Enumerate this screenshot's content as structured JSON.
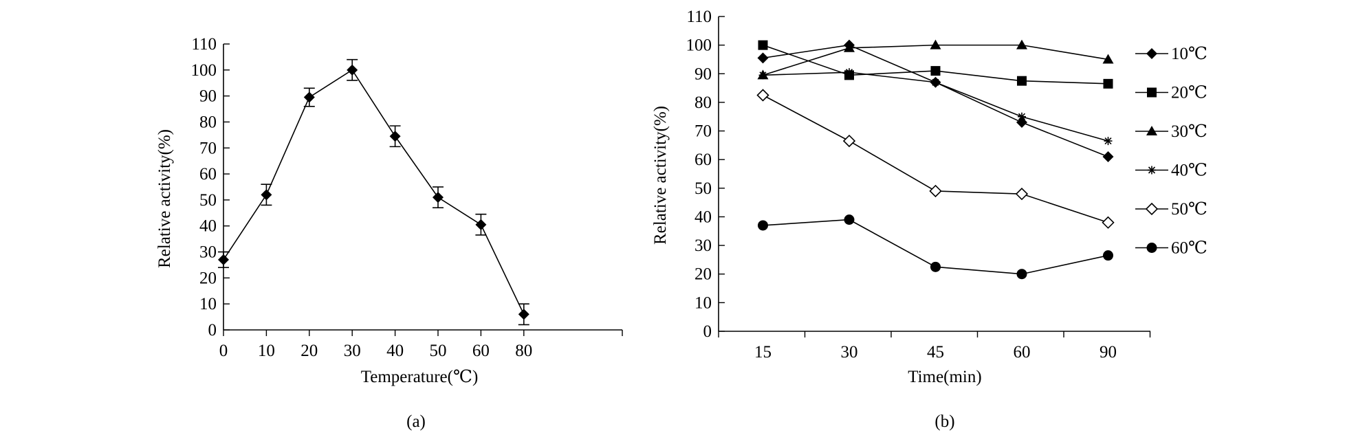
{
  "panels": [
    {
      "label": "(a)",
      "chart_data": {
        "type": "line",
        "xlabel": "Temperature(℃)",
        "ylabel": "Relative activity(%)",
        "categories": [
          "0",
          "10",
          "20",
          "30",
          "40",
          "50",
          "60",
          "80"
        ],
        "ylim": [
          0,
          110
        ],
        "yticks": [
          0,
          10,
          20,
          30,
          40,
          50,
          60,
          70,
          80,
          90,
          100,
          110
        ],
        "grid": false,
        "series": [
          {
            "values": [
              27,
              52,
              89.5,
              100,
              74.5,
              51,
              40.5,
              6
            ],
            "errors": [
              3,
              4,
              3.5,
              4,
              4,
              4,
              4,
              4
            ],
            "marker": "diamond"
          }
        ]
      }
    },
    {
      "label": "(b)",
      "chart_data": {
        "type": "line",
        "xlabel": "Time(min)",
        "ylabel": "Relative activity(%)",
        "categories": [
          "15",
          "30",
          "45",
          "60",
          "90"
        ],
        "ylim": [
          0,
          110
        ],
        "yticks": [
          0,
          10,
          20,
          30,
          40,
          50,
          60,
          70,
          80,
          90,
          100,
          110
        ],
        "grid": false,
        "legend": "right",
        "series": [
          {
            "name": "10℃",
            "marker": "diamond",
            "values": [
              95.5,
              100,
              87,
              73,
              61
            ]
          },
          {
            "name": "20℃",
            "marker": "square",
            "values": [
              100,
              89.5,
              91,
              87.5,
              86.5
            ]
          },
          {
            "name": "30℃",
            "marker": "triangle",
            "values": [
              89.5,
              99,
              100,
              100,
              95
            ]
          },
          {
            "name": "40℃",
            "marker": "star",
            "values": [
              89.5,
              90.5,
              87,
              75,
              66.5
            ]
          },
          {
            "name": "50℃",
            "marker": "open-diamond",
            "values": [
              82.5,
              66.5,
              49,
              48,
              38
            ]
          },
          {
            "name": "60℃",
            "marker": "circle",
            "values": [
              37,
              39,
              22.5,
              20,
              26.5
            ]
          }
        ]
      }
    }
  ]
}
